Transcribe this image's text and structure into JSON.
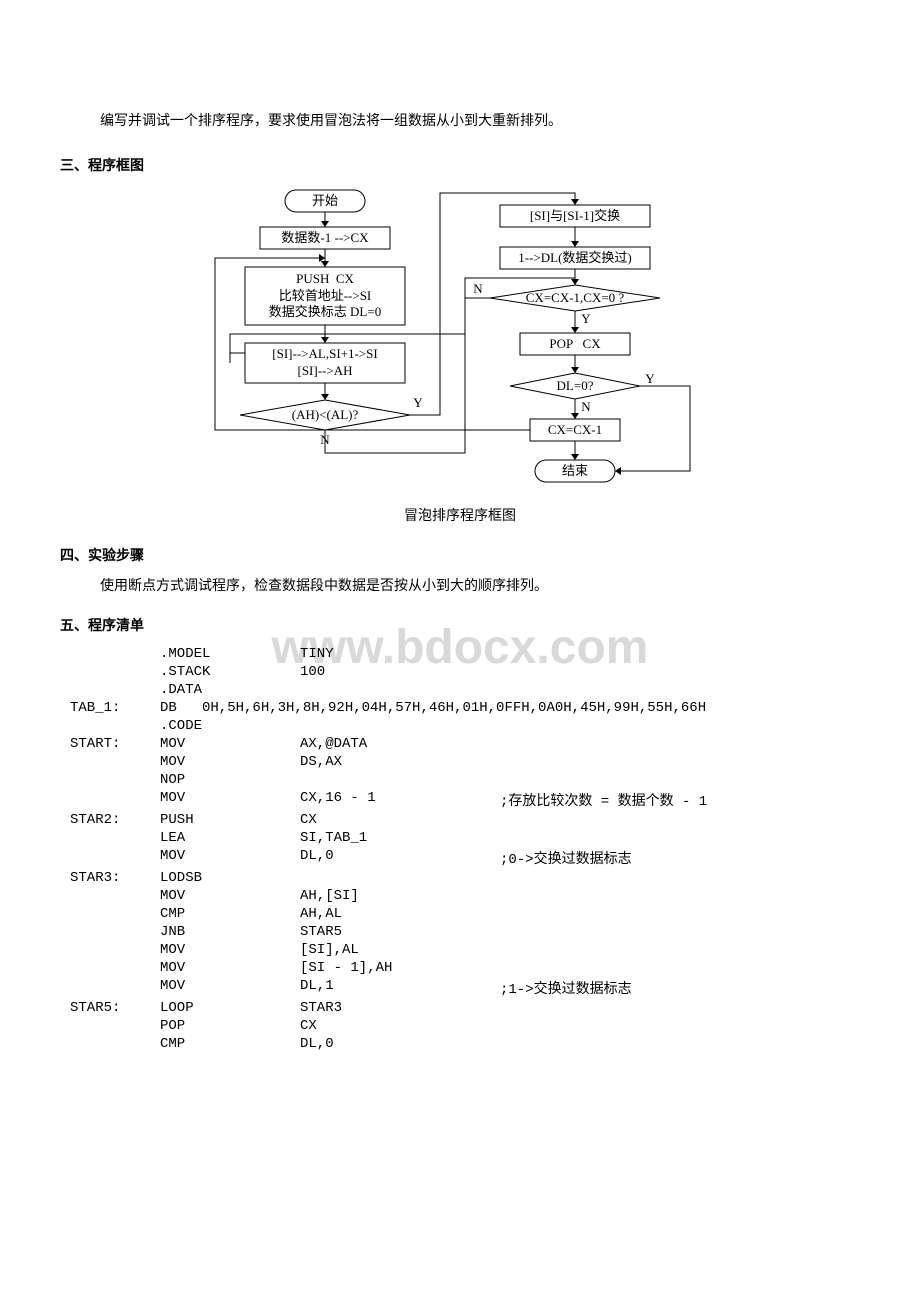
{
  "intro_text": "编写并调试一个排序程序，要求使用冒泡法将一组数据从小到大重新排列。",
  "section3_title": "三、程序框图",
  "flowchart": {
    "stroke": "#000000",
    "fill": "#ffffff",
    "font_size": 13,
    "nodes": {
      "start": "开始",
      "n1": "数据数-1 -->CX",
      "n2": "PUSH  CX\n比较首地址-->SI\n数据交换标志 DL=0",
      "n3": "[SI]-->AL,SI+1->SI\n[SI]-->AH",
      "n4": "(AH)<(AL)?",
      "n4_y": "Y",
      "n4_n": "N",
      "n5": "[SI]与[SI-1]交换",
      "n6": "1-->DL(数据交换过)",
      "n7": "CX=CX-1,CX=0 ?",
      "n7_y": "Y",
      "n7_n": "N",
      "n8": "POP   CX",
      "n9": "DL=0?",
      "n9_y": "Y",
      "n9_n": "N",
      "n10": "CX=CX-1",
      "end": "结束"
    }
  },
  "flowchart_caption": "冒泡排序程序框图",
  "section4_title": "四、实验步骤",
  "section4_text": "使用断点方式调试程序，检查数据段中数据是否按从小到大的顺序排列。",
  "section5_title": "五、程序清单",
  "watermark": "www.bdocx.com",
  "code": [
    {
      "label": "",
      "op": ".MODEL",
      "arg": "TINY",
      "cmt": ""
    },
    {
      "label": "",
      "op": ".STACK",
      "arg": "100",
      "cmt": ""
    },
    {
      "label": "",
      "op": ".DATA",
      "arg": "",
      "cmt": ""
    },
    {
      "label": "TAB_1:",
      "op": "DB   0H,5H,6H,3H,8H,92H,04H,57H,46H,01H,0FFH,0A0H,45H,99H,55H,66H",
      "arg": "",
      "cmt": "",
      "span": true
    },
    {
      "label": "",
      "op": ".CODE",
      "arg": "",
      "cmt": ""
    },
    {
      "label": "START:",
      "op": "MOV",
      "arg": "AX,@DATA",
      "cmt": ""
    },
    {
      "label": "",
      "op": "MOV",
      "arg": "DS,AX",
      "cmt": ""
    },
    {
      "label": "",
      "op": "NOP",
      "arg": "",
      "cmt": ""
    },
    {
      "label": "",
      "op": "MOV",
      "arg": "CX,16 - 1",
      "cmt": ";存放比较次数 = 数据个数 - 1"
    },
    {
      "label": "STAR2:",
      "op": "PUSH",
      "arg": "CX",
      "cmt": ""
    },
    {
      "label": "",
      "op": "LEA",
      "arg": "SI,TAB_1",
      "cmt": ""
    },
    {
      "label": "",
      "op": "MOV",
      "arg": "DL,0",
      "cmt": ";0->交换过数据标志"
    },
    {
      "label": "STAR3:",
      "op": "LODSB",
      "arg": "",
      "cmt": ""
    },
    {
      "label": "",
      "op": "MOV",
      "arg": "AH,[SI]",
      "cmt": ""
    },
    {
      "label": "",
      "op": "CMP",
      "arg": "AH,AL",
      "cmt": ""
    },
    {
      "label": "",
      "op": "JNB",
      "arg": "STAR5",
      "cmt": ""
    },
    {
      "label": "",
      "op": "MOV",
      "arg": "[SI],AL",
      "cmt": ""
    },
    {
      "label": "",
      "op": "MOV",
      "arg": "[SI - 1],AH",
      "cmt": ""
    },
    {
      "label": "",
      "op": "MOV",
      "arg": "DL,1",
      "cmt": ";1->交换过数据标志"
    },
    {
      "label": "STAR5:",
      "op": "LOOP",
      "arg": "STAR3",
      "cmt": ""
    },
    {
      "label": "",
      "op": "POP",
      "arg": "CX",
      "cmt": ""
    },
    {
      "label": "",
      "op": "CMP",
      "arg": "DL,0",
      "cmt": ""
    }
  ]
}
